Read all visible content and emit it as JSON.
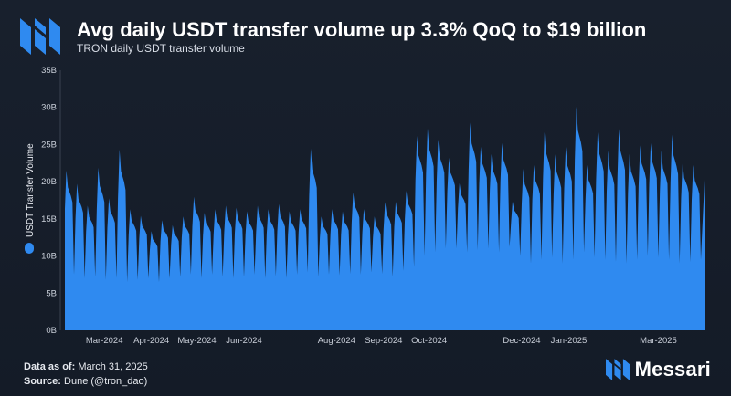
{
  "header": {
    "title": "Avg daily USDT transfer volume up 3.3% QoQ to $19 billion",
    "subtitle": "TRON daily USDT transfer volume"
  },
  "footer": {
    "data_as_of_label": "Data as of:",
    "data_as_of_value": "March 31, 2025",
    "source_label": "Source:",
    "source_value": "Dune (@tron_dao)",
    "brand": "Messari"
  },
  "colors": {
    "area": "#2f8af0",
    "background": "#161d29",
    "grid": "#3a4250",
    "text": "#c9cfd9"
  },
  "chart_data": {
    "type": "area",
    "title": "TRON daily USDT transfer volume",
    "ylabel": "USDT Transfer Volume",
    "legend": [
      "USDT Transfer Volume"
    ],
    "legend_placement": "left-vertical",
    "ylim": [
      0,
      35
    ],
    "y_unit": "B",
    "y_ticks": [
      "0B",
      "5B",
      "10B",
      "15B",
      "20B",
      "25B",
      "30B",
      "35B"
    ],
    "x_ticks": [
      "Mar-2024",
      "Apr-2024",
      "May-2024",
      "Jun-2024",
      "Aug-2024",
      "Sep-2024",
      "Oct-2024",
      "Dec-2024",
      "Jan-2025",
      "Mar-2025"
    ],
    "grid": false,
    "series": [
      {
        "name": "USDT Transfer Volume",
        "x": [
          "2024-02-04",
          "2024-02-11",
          "2024-02-18",
          "2024-02-25",
          "2024-03-03",
          "2024-03-10",
          "2024-03-17",
          "2024-03-24",
          "2024-03-31",
          "2024-04-07",
          "2024-04-14",
          "2024-04-21",
          "2024-04-28",
          "2024-05-05",
          "2024-05-12",
          "2024-05-19",
          "2024-05-26",
          "2024-06-02",
          "2024-06-09",
          "2024-06-16",
          "2024-06-23",
          "2024-06-30",
          "2024-07-07",
          "2024-07-14",
          "2024-07-21",
          "2024-07-28",
          "2024-08-04",
          "2024-08-11",
          "2024-08-18",
          "2024-08-25",
          "2024-09-01",
          "2024-09-08",
          "2024-09-15",
          "2024-09-22",
          "2024-09-29",
          "2024-10-06",
          "2024-10-13",
          "2024-10-20",
          "2024-10-27",
          "2024-11-03",
          "2024-11-10",
          "2024-11-17",
          "2024-11-24",
          "2024-12-01",
          "2024-12-08",
          "2024-12-15",
          "2024-12-22",
          "2024-12-29",
          "2025-01-05",
          "2025-01-12",
          "2025-01-19",
          "2025-01-26",
          "2025-02-02",
          "2025-02-09",
          "2025-02-16",
          "2025-02-23",
          "2025-03-02",
          "2025-03-09",
          "2025-03-16",
          "2025-03-23",
          "2025-03-31"
        ],
        "peaks": [
          21.8,
          20.0,
          17.0,
          22.2,
          18.0,
          24.7,
          16.5,
          15.6,
          13.5,
          15.0,
          14.3,
          15.5,
          18.2,
          16.0,
          16.5,
          17.0,
          16.7,
          16.2,
          17.0,
          16.5,
          17.2,
          16.2,
          16.5,
          24.8,
          15.5,
          16.5,
          16.2,
          18.8,
          16.5,
          15.5,
          17.5,
          17.5,
          19.0,
          26.5,
          27.5,
          26.0,
          23.5,
          20.0,
          28.3,
          25.0,
          24.0,
          25.5,
          17.5,
          22.0,
          22.5,
          27.0,
          24.0,
          25.0,
          30.5,
          22.5,
          27.0,
          24.5,
          27.5,
          24.0,
          25.2,
          25.5,
          24.5,
          26.7,
          23.0,
          22.5,
          23.5
        ],
        "troughs": [
          7.5,
          7.0,
          7.2,
          6.8,
          7.0,
          6.5,
          6.8,
          7.0,
          6.5,
          7.0,
          7.2,
          7.5,
          7.0,
          7.5,
          7.2,
          7.0,
          7.2,
          7.5,
          7.0,
          7.3,
          7.0,
          7.5,
          7.8,
          7.2,
          7.5,
          7.4,
          7.6,
          7.5,
          7.8,
          7.6,
          7.2,
          8.0,
          8.5,
          10.0,
          10.5,
          11.0,
          11.0,
          10.5,
          10.8,
          11.0,
          10.5,
          11.2,
          10.0,
          9.0,
          9.5,
          9.8,
          9.0,
          9.5,
          10.5,
          9.8,
          9.5,
          9.2,
          9.0,
          9.5,
          10.0,
          9.8,
          9.5,
          9.0,
          9.2,
          9.5,
          9.5
        ]
      }
    ]
  }
}
